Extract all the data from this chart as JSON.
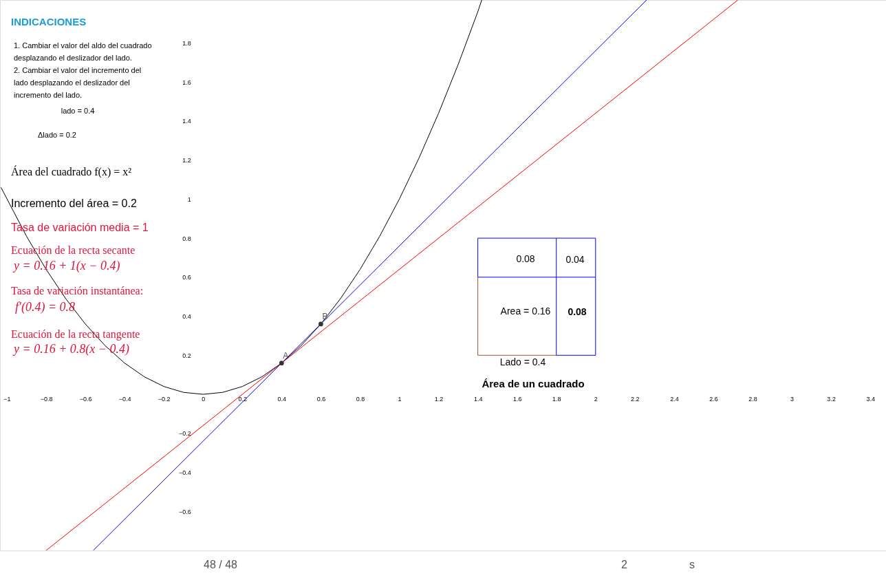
{
  "chart_data": {
    "type": "line",
    "title": "Área de un cuadrado",
    "xlim": [
      -1.035,
      3.48
    ],
    "ylim": [
      -0.8,
      2.02
    ],
    "xticks": [
      -1,
      -0.8,
      -0.6,
      -0.4,
      -0.2,
      0,
      0.2,
      0.4,
      0.6,
      0.8,
      1,
      1.2,
      1.4,
      1.6,
      1.8,
      2,
      2.2,
      2.4,
      2.6,
      2.8,
      3,
      3.2,
      3.4
    ],
    "yticks": [
      -0.6,
      -0.4,
      -0.2,
      0.2,
      0.4,
      0.6,
      0.8,
      1,
      1.2,
      1.4,
      1.6,
      1.8
    ],
    "grid": false,
    "marker": "none",
    "line_style": "solid",
    "series": [
      {
        "color": "#000000",
        "x": [
          -1.03,
          -0.9,
          -0.8,
          -0.7,
          -0.6,
          -0.5,
          -0.4,
          -0.3,
          -0.2,
          -0.1,
          0,
          0.1,
          0.2,
          0.3,
          0.4,
          0.5,
          0.6,
          0.7,
          0.8,
          0.9,
          1,
          1.1,
          1.2,
          1.3,
          1.4,
          1.42
        ],
        "values": [
          1.06,
          0.81,
          0.64,
          0.49,
          0.36,
          0.25,
          0.16,
          0.09,
          0.04,
          0.01,
          0,
          0.01,
          0.04,
          0.09,
          0.16,
          0.25,
          0.36,
          0.49,
          0.64,
          0.81,
          1,
          1.21,
          1.44,
          1.69,
          1.96,
          2.02
        ]
      },
      {
        "color": "#0000ff",
        "x": [
          -0.56,
          2.26
        ],
        "values": [
          -0.8,
          2.02
        ]
      },
      {
        "color": "#ff0000",
        "x": [
          -0.8,
          2.725
        ],
        "values": [
          -0.8,
          2.02
        ]
      },
      {
        "type": "scatter",
        "name": "A",
        "color": "#333333",
        "x": [
          0.4
        ],
        "values": [
          0.16
        ]
      },
      {
        "type": "scatter",
        "name": "B",
        "color": "#333333",
        "x": [
          0.6
        ],
        "values": [
          0.36
        ]
      },
      {
        "color": "#a0522d",
        "x": [
          1.4,
          1.4,
          1.8
        ],
        "values": [
          0.6,
          0.2,
          0.2
        ]
      },
      {
        "color": "#0000ff",
        "x": [
          1.8,
          1.4,
          1.4,
          1.8,
          1.8,
          2.0,
          2.0,
          2.0,
          1.8,
          1.8,
          2.0
        ],
        "values": [
          0.8,
          0.8,
          0.6,
          0.6,
          0.2,
          0.2,
          0.6,
          0.8,
          0.8,
          0.6,
          0.6
        ]
      }
    ],
    "annotations": [
      "INDICACIONES",
      "1. Cambiar el valor del aldo del cuadrado",
      "desplazando el deslizador del lado.",
      "2. Cambiar el valor del incremento del",
      "lado desplazando el deslizador del",
      "incremento del lado.",
      "lado = 0.4",
      "Δlado = 0.2",
      "Área del cuadrado  f(x) = x²",
      "Incremento del área =  0.2",
      "Tasa de variación media =  1",
      "Ecuación de la recta secante",
      "y = 0.16 + 1(x − 0.4)",
      "Tasa de variación instantánea:",
      "f′(0.4) = 0.8",
      "Ecuación de la recta tangente",
      "y = 0.16 + 0.8(x − 0.4)",
      "48 / 48",
      "2",
      "s",
      "0.08",
      "0.04",
      "Area = 0.16",
      "0.08",
      "Lado = 0.4"
    ]
  }
}
